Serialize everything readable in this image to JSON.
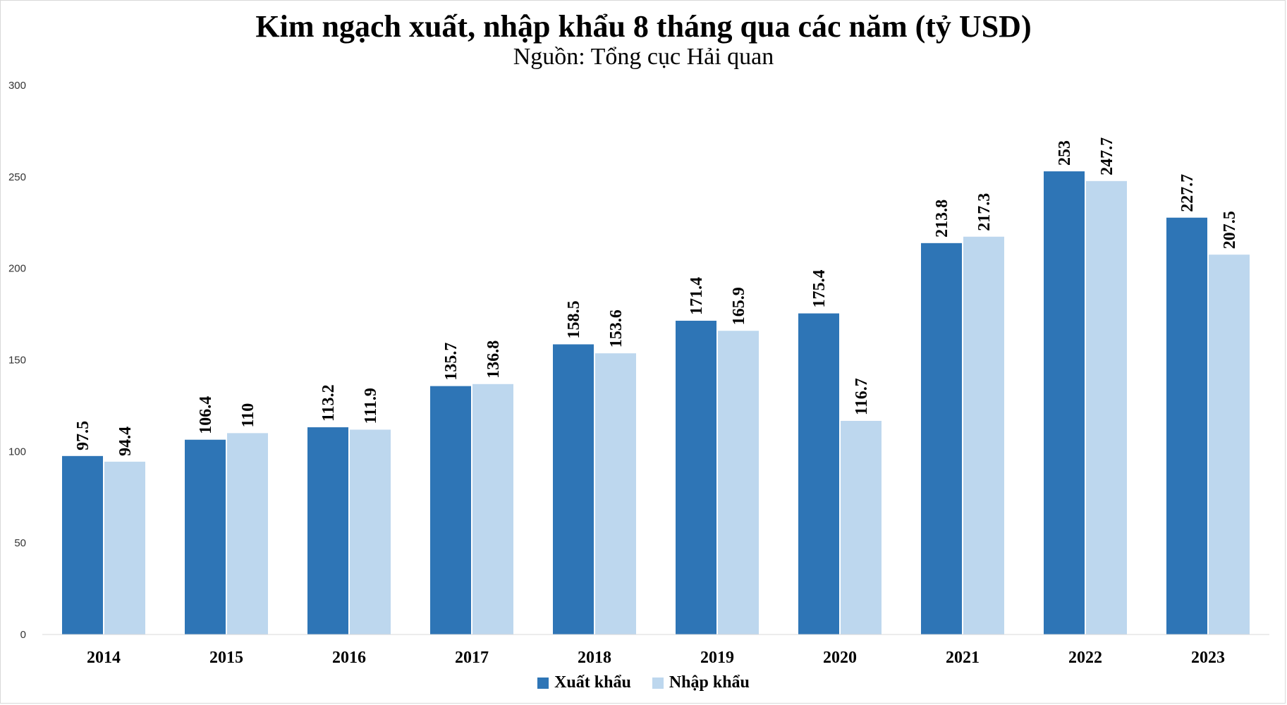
{
  "chart_data": {
    "type": "bar",
    "title": "Kim ngạch xuất, nhập khẩu 8 tháng qua các năm (tỷ USD)",
    "subtitle": "Nguồn: Tổng cục Hải quan",
    "categories": [
      "2014",
      "2015",
      "2016",
      "2017",
      "2018",
      "2019",
      "2020",
      "2021",
      "2022",
      "2023"
    ],
    "series": [
      {
        "name": "Xuất khẩu",
        "color": "#2E75B6",
        "values": [
          97.5,
          106.4,
          113.2,
          135.7,
          158.5,
          171.4,
          175.4,
          213.8,
          253,
          227.7
        ],
        "labels": [
          "97.5",
          "106.4",
          "113.2",
          "135.7",
          "158.5",
          "171.4",
          "175.4",
          "213.8",
          "253",
          "227.7"
        ]
      },
      {
        "name": "Nhập khẩu",
        "color": "#BDD7EE",
        "values": [
          94.4,
          110,
          111.9,
          136.8,
          153.6,
          165.9,
          116.7,
          217.3,
          247.7,
          207.5
        ],
        "labels": [
          "94.4",
          "110",
          "111.9",
          "136.8",
          "153.6",
          "165.9",
          "116.7",
          "217.3",
          "247.7",
          "207.5"
        ]
      }
    ],
    "ylim": [
      0,
      300
    ],
    "yticks": [
      "0",
      "50",
      "100",
      "150",
      "200",
      "250",
      "300"
    ],
    "xlabel": "",
    "ylabel": "",
    "grid": false,
    "legend_position": "bottom"
  }
}
